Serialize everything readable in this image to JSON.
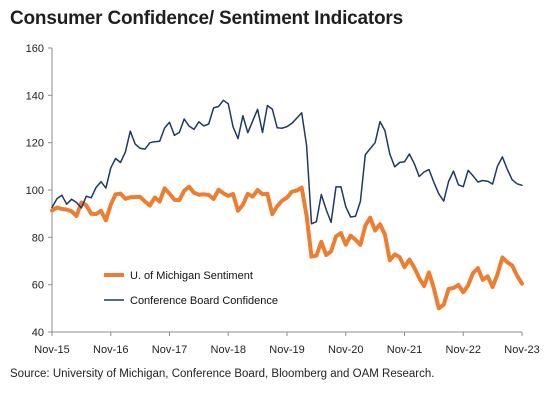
{
  "title": "Consumer Confidence/ Sentiment Indicators",
  "source": "Source: University of Michigan, Conference Board, Bloomberg and OAM Research.",
  "chart_data": {
    "type": "line",
    "title": "Consumer Confidence/ Sentiment Indicators",
    "xlabel": "",
    "ylabel": "",
    "ylim": [
      40,
      160
    ],
    "yticks": [
      40,
      60,
      80,
      100,
      120,
      140,
      160
    ],
    "x_tick_labels": [
      "Nov-15",
      "Nov-16",
      "Nov-17",
      "Nov-18",
      "Nov-19",
      "Nov-20",
      "Nov-21",
      "Nov-22",
      "Nov-23"
    ],
    "x": [
      "2015-11",
      "2015-12",
      "2016-01",
      "2016-02",
      "2016-03",
      "2016-04",
      "2016-05",
      "2016-06",
      "2016-07",
      "2016-08",
      "2016-09",
      "2016-10",
      "2016-11",
      "2016-12",
      "2017-01",
      "2017-02",
      "2017-03",
      "2017-04",
      "2017-05",
      "2017-06",
      "2017-07",
      "2017-08",
      "2017-09",
      "2017-10",
      "2017-11",
      "2017-12",
      "2018-01",
      "2018-02",
      "2018-03",
      "2018-04",
      "2018-05",
      "2018-06",
      "2018-07",
      "2018-08",
      "2018-09",
      "2018-10",
      "2018-11",
      "2018-12",
      "2019-01",
      "2019-02",
      "2019-03",
      "2019-04",
      "2019-05",
      "2019-06",
      "2019-07",
      "2019-08",
      "2019-09",
      "2019-10",
      "2019-11",
      "2019-12",
      "2020-01",
      "2020-02",
      "2020-03",
      "2020-04",
      "2020-05",
      "2020-06",
      "2020-07",
      "2020-08",
      "2020-09",
      "2020-10",
      "2020-11",
      "2020-12",
      "2021-01",
      "2021-02",
      "2021-03",
      "2021-04",
      "2021-05",
      "2021-06",
      "2021-07",
      "2021-08",
      "2021-09",
      "2021-10",
      "2021-11",
      "2021-12",
      "2022-01",
      "2022-02",
      "2022-03",
      "2022-04",
      "2022-05",
      "2022-06",
      "2022-07",
      "2022-08",
      "2022-09",
      "2022-10",
      "2022-11",
      "2022-12",
      "2023-01",
      "2023-02",
      "2023-03",
      "2023-04",
      "2023-05",
      "2023-06",
      "2023-07",
      "2023-08",
      "2023-09",
      "2023-10",
      "2023-11"
    ],
    "grid": false,
    "legend_position": "lower-left",
    "series": [
      {
        "name": "U. of Michigan Sentiment",
        "color": "#ED7D31",
        "values": [
          91.3,
          92.6,
          92.0,
          91.7,
          91.0,
          89.0,
          94.7,
          93.5,
          90.0,
          89.8,
          91.2,
          87.2,
          93.8,
          98.2,
          98.5,
          96.3,
          96.9,
          97.0,
          97.1,
          95.1,
          93.4,
          96.8,
          95.1,
          100.7,
          98.5,
          95.9,
          95.7,
          99.7,
          101.4,
          98.8,
          98.0,
          98.2,
          97.9,
          96.2,
          100.1,
          98.6,
          97.5,
          98.3,
          91.2,
          93.8,
          98.4,
          97.2,
          100.0,
          98.2,
          98.4,
          89.8,
          93.2,
          95.5,
          96.8,
          99.3,
          99.8,
          101.0,
          89.1,
          71.8,
          72.3,
          78.1,
          72.5,
          74.1,
          80.4,
          81.8,
          76.9,
          80.7,
          79.0,
          76.8,
          84.9,
          88.3,
          82.9,
          85.5,
          81.2,
          70.3,
          72.8,
          71.7,
          67.4,
          70.6,
          67.2,
          62.8,
          59.4,
          65.2,
          58.4,
          50.0,
          51.5,
          58.2,
          58.6,
          59.9,
          56.8,
          59.7,
          64.9,
          67.0,
          62.0,
          63.5,
          59.0,
          64.4,
          71.5,
          69.5,
          68.1,
          63.8,
          60.4
        ]
      },
      {
        "name": "Conference Board Confidence",
        "color": "#1F3864",
        "values": [
          92.6,
          96.3,
          97.8,
          94.0,
          96.1,
          94.7,
          92.4,
          97.4,
          96.7,
          101.1,
          103.5,
          100.8,
          109.4,
          113.3,
          111.6,
          116.1,
          124.9,
          119.4,
          117.6,
          117.3,
          120.0,
          120.4,
          120.6,
          126.2,
          128.6,
          123.1,
          124.3,
          130.0,
          127.0,
          125.6,
          128.8,
          127.1,
          127.9,
          134.7,
          135.3,
          137.9,
          136.4,
          126.6,
          121.7,
          131.4,
          124.2,
          129.2,
          134.1,
          124.3,
          135.7,
          134.2,
          126.3,
          126.1,
          126.8,
          128.2,
          130.4,
          132.6,
          118.8,
          85.7,
          86.6,
          98.1,
          91.7,
          86.3,
          101.3,
          101.4,
          92.9,
          88.6,
          88.9,
          95.2,
          114.9,
          117.5,
          120.0,
          128.9,
          125.1,
          115.2,
          109.8,
          111.6,
          111.9,
          115.2,
          111.1,
          105.7,
          107.6,
          108.6,
          103.2,
          98.4,
          95.3,
          103.6,
          108.0,
          102.2,
          101.4,
          108.3,
          106.0,
          103.4,
          104.0,
          103.7,
          102.5,
          110.1,
          114.0,
          108.7,
          104.3,
          102.6,
          102.0
        ]
      }
    ]
  }
}
